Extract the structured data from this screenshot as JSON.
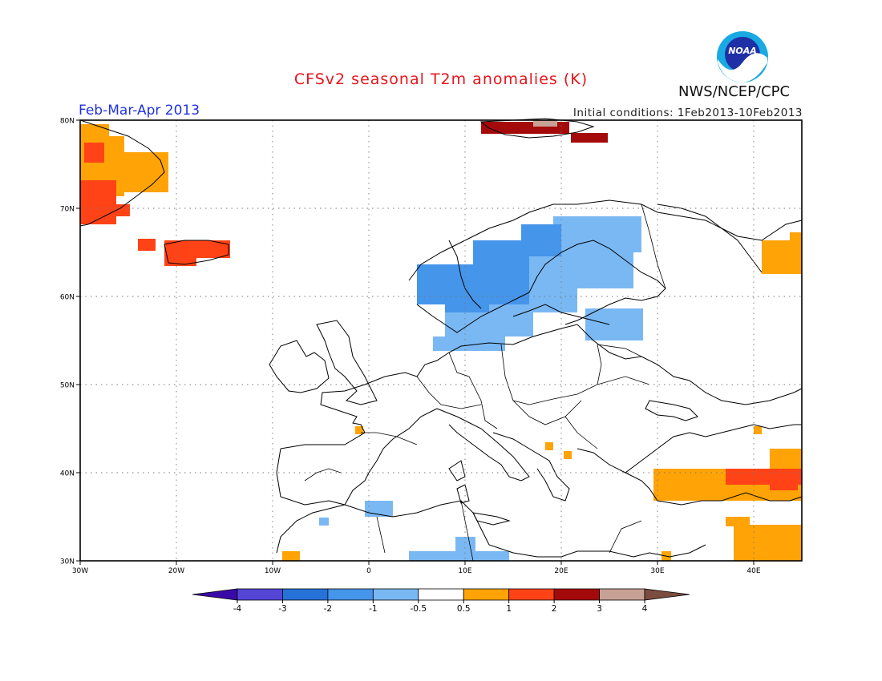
{
  "header": {
    "title": "CFSv2 seasonal T2m anomalies (K)",
    "period": "Feb-Mar-Apr 2013",
    "initial_conditions": "Initial conditions: 1Feb2013-10Feb2013",
    "agency": "NWS/NCEP/CPC",
    "logo_text": "NOAA"
  },
  "colors": {
    "title": "#e8141b",
    "period": "#2233dd",
    "bins": [
      "#3a0aa8",
      "#5545d6",
      "#2672d8",
      "#4595ea",
      "#7ab8f4",
      "#ffffff",
      "#ffa307",
      "#ff4316",
      "#a50a0a",
      "#c8a196",
      "#7b4d40"
    ]
  },
  "map": {
    "extent": {
      "lon": [
        -30,
        45
      ],
      "lat": [
        30,
        80
      ]
    },
    "lat_labels": [
      "30N",
      "40N",
      "50N",
      "60N",
      "70N",
      "80N"
    ],
    "lon_labels": [
      "30W",
      "20W",
      "10W",
      "0",
      "10E",
      "20E",
      "30E",
      "40E"
    ],
    "anomaly_patches": [
      {
        "level": "0.5 to 1",
        "region": "Greenland east coast"
      },
      {
        "level": "1 to 2",
        "region": "Greenland east coast"
      },
      {
        "level": "1 to 2",
        "region": "Iceland"
      },
      {
        "level": "2 to 3",
        "region": "Svalbard"
      },
      {
        "level": "3 to 4",
        "region": "Svalbard"
      },
      {
        "level": "-1 to -0.5",
        "region": "Scandinavia / Baltic"
      },
      {
        "level": "-2 to -1",
        "region": "Norway / Sweden"
      },
      {
        "level": "0.5 to 1",
        "region": "NW Russia edge"
      },
      {
        "level": "0.5 to 1",
        "region": "Turkey / Middle East"
      },
      {
        "level": "1 to 2",
        "region": "Eastern Turkey"
      },
      {
        "level": "-1 to -0.5",
        "region": "North Africa"
      },
      {
        "level": "0.5 to 1",
        "region": "Balkans / N Spain spots"
      }
    ]
  },
  "colorbar": {
    "labels": [
      "-4",
      "-3",
      "-2",
      "-1",
      "-0.5",
      "0.5",
      "1",
      "2",
      "3",
      "4"
    ]
  }
}
